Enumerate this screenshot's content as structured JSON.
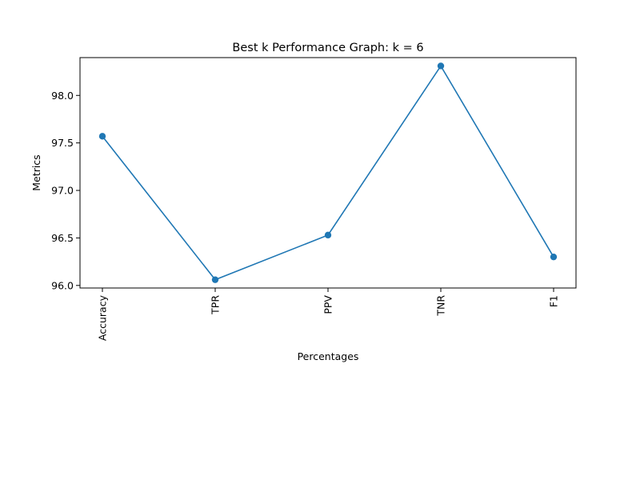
{
  "chart_data": {
    "type": "line",
    "title": "Best k Performance Graph: k = 6",
    "xlabel": "Percentages",
    "ylabel": "Metrics",
    "categories": [
      "Accuracy",
      "TPR",
      "PPV",
      "TNR",
      "F1"
    ],
    "series": [
      {
        "values": [
          97.57,
          96.06,
          96.53,
          98.31,
          96.3
        ],
        "color": "#1f77b4",
        "marker": "circle"
      }
    ],
    "yticks": [
      96.0,
      96.5,
      97.0,
      97.5,
      98.0
    ],
    "ytick_labels": [
      "96.0",
      "96.5",
      "97.0",
      "97.5",
      "98.0"
    ],
    "ylim": [
      95.973,
      98.398
    ],
    "grid": false,
    "legend": false
  }
}
